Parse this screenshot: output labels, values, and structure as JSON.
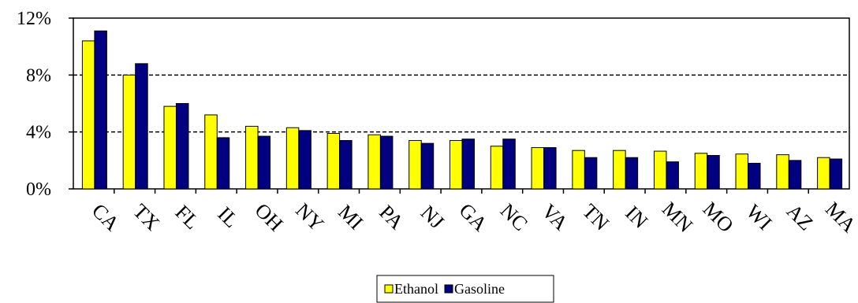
{
  "chart_data": {
    "type": "bar",
    "categories": [
      "CA",
      "TX",
      "FL",
      "IL",
      "OH",
      "NY",
      "MI",
      "PA",
      "NJ",
      "GA",
      "NC",
      "VA",
      "TN",
      "IN",
      "MN",
      "MO",
      "WI",
      "AZ",
      "MA"
    ],
    "series": [
      {
        "name": "Ethanol",
        "values": [
          10.4,
          8.0,
          5.8,
          5.2,
          4.4,
          4.3,
          3.9,
          3.8,
          3.4,
          3.4,
          3.0,
          2.9,
          2.7,
          2.7,
          2.65,
          2.5,
          2.45,
          2.4,
          2.2
        ],
        "color": "#FFFF00"
      },
      {
        "name": "Gasoline",
        "values": [
          11.1,
          8.8,
          6.0,
          3.6,
          3.7,
          4.1,
          3.4,
          3.7,
          3.2,
          3.5,
          3.5,
          2.9,
          2.2,
          2.2,
          1.9,
          2.35,
          1.8,
          2.0,
          2.1
        ],
        "color": "#000080"
      }
    ],
    "ylim": [
      0,
      12
    ],
    "yticks": [
      "0%",
      "4%",
      "8%",
      "12%"
    ],
    "ytick_values": [
      0,
      4,
      8,
      12
    ],
    "gridlines_dashed_at": [
      4,
      8
    ],
    "legend_position": "bottom-center"
  }
}
